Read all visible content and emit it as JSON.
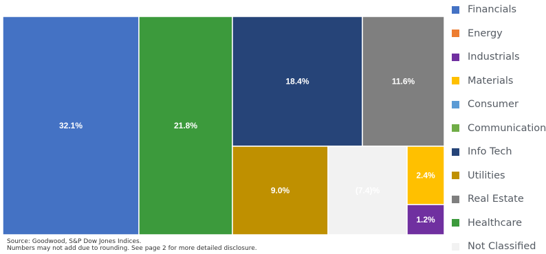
{
  "chart_data": {
    "type": "treemap",
    "cells": [
      {
        "label": "32.1%",
        "value": 32.1,
        "category": "Financials"
      },
      {
        "label": "21.8%",
        "value": 21.8,
        "category": "Healthcare"
      },
      {
        "label": "18.4%",
        "value": 18.4,
        "category": "Info Tech"
      },
      {
        "label": "11.6%",
        "value": 11.6,
        "category": "Real Estate"
      },
      {
        "label": "9.0%",
        "value": 9.0,
        "category": "Utilities"
      },
      {
        "label": "(7.4)%",
        "value": -7.4,
        "category": "Not Classified"
      },
      {
        "label": "2.4%",
        "value": 2.4,
        "category": "Materials"
      },
      {
        "label": "1.2%",
        "value": 1.2,
        "category": "Industrials"
      }
    ],
    "legend": [
      {
        "name": "Financials",
        "color": "#4472c4"
      },
      {
        "name": "Energy",
        "color": "#ed7d31"
      },
      {
        "name": "Industrials",
        "color": "#7030a0"
      },
      {
        "name": "Materials",
        "color": "#ffc000"
      },
      {
        "name": "Consumer",
        "color": "#5b9bd5"
      },
      {
        "name": "Communication",
        "color": "#70ad47"
      },
      {
        "name": "Info Tech",
        "color": "#264478"
      },
      {
        "name": "Utilities",
        "color": "#bf9000"
      },
      {
        "name": "Real Estate",
        "color": "#7f7f7f"
      },
      {
        "name": "Healthcare",
        "color": "#3c9a3c"
      },
      {
        "name": "Not Classified",
        "color": "#f2f2f2"
      }
    ],
    "legend_position": "right"
  },
  "footnote": {
    "line1": "Source: Goodwood, S&P Dow Jones Indices.",
    "line2": "Numbers may not add due to rounding. See page 2 for more detailed disclosure."
  }
}
